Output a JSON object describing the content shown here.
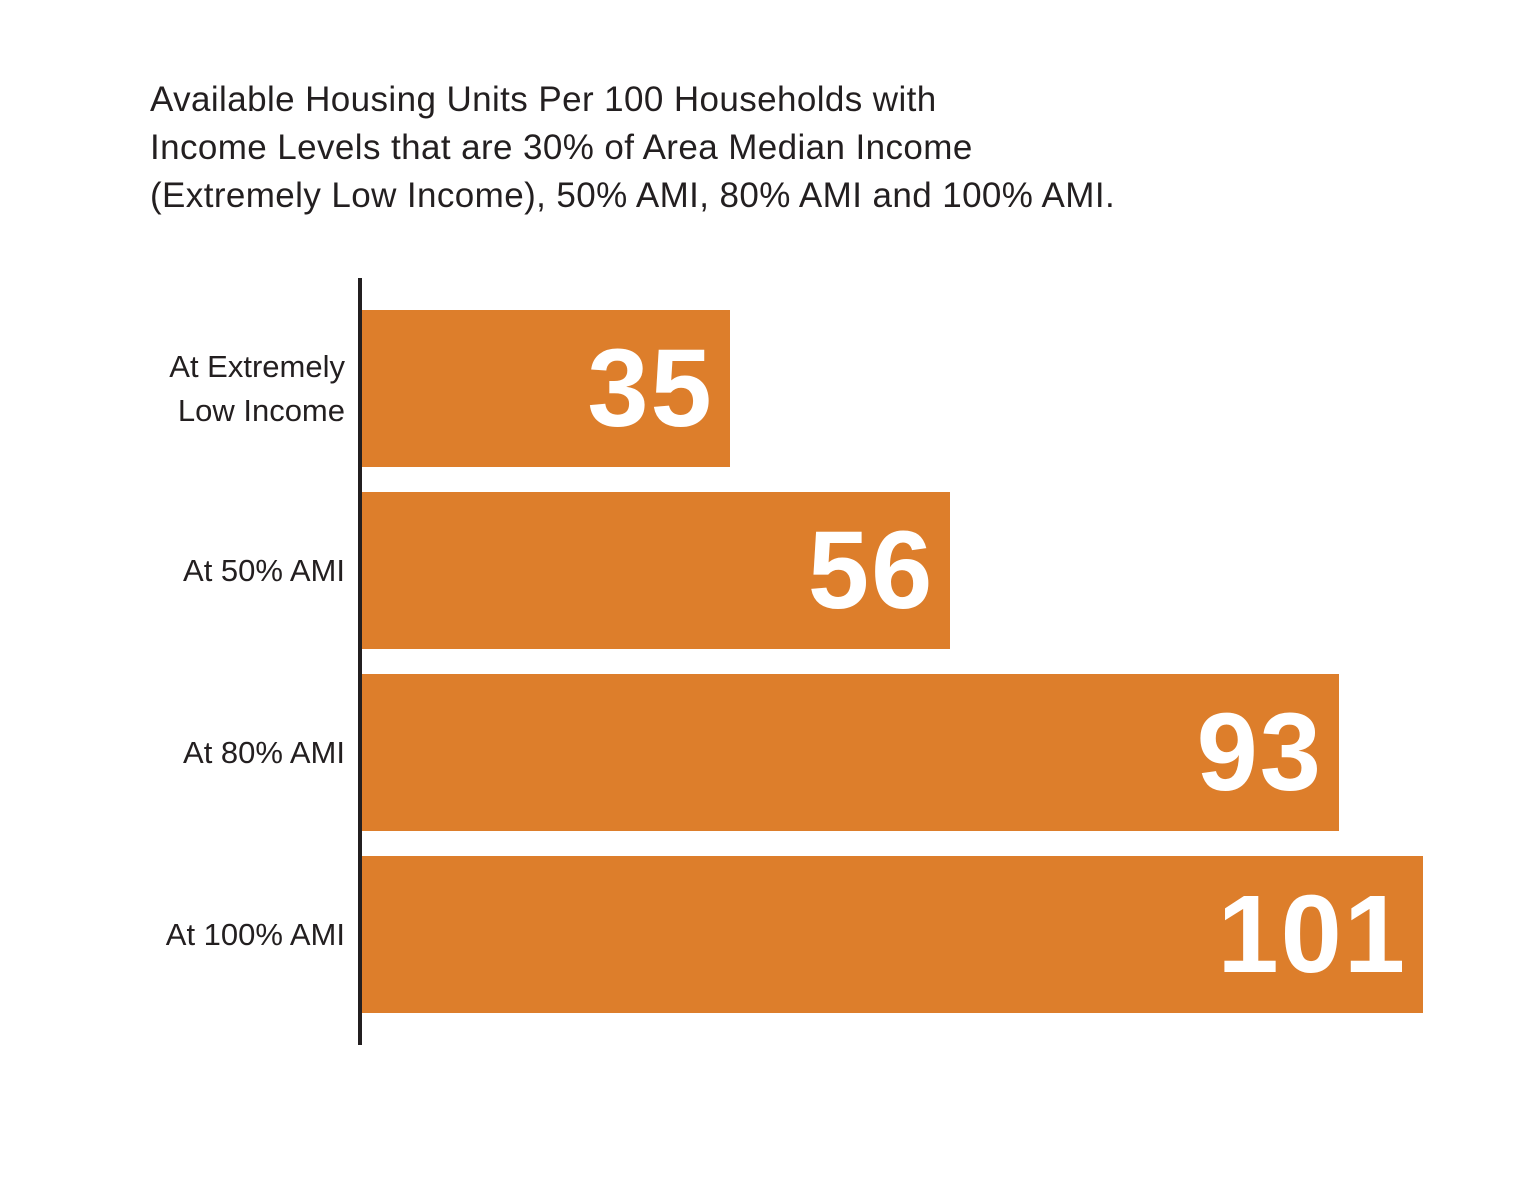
{
  "page": {
    "background": "#FFFFFF"
  },
  "chart_data": {
    "type": "bar",
    "orientation": "horizontal",
    "title": "Available Housing Units Per 100 Households with\nIncome Levels that are 30% of Area Median Income\n(Extremely Low Income), 50% AMI, 80% AMI and 100% AMI.",
    "categories": [
      "At Extremely\nLow Income",
      "At 50% AMI",
      "At 80% AMI",
      "At 100% AMI"
    ],
    "values": [
      35,
      56,
      93,
      101
    ],
    "value_labels": [
      "35",
      "56",
      "93",
      "101"
    ],
    "xlabel": "",
    "ylabel": "",
    "xlim": [
      0,
      101
    ],
    "grid": false,
    "legend": false,
    "value_label_position": "inside-right",
    "colors": {
      "bar": "#DD7E2B",
      "value_text": "#FFFFFF",
      "label_text": "#231F20",
      "title_text": "#231F20",
      "axis": "#231F20",
      "background": "#FFFFFF"
    }
  }
}
